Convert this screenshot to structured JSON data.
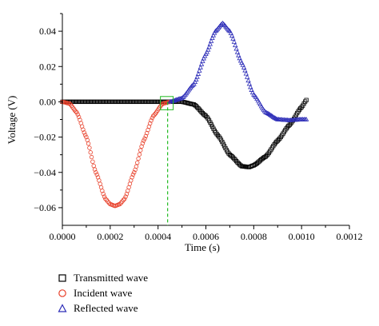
{
  "chart_data": {
    "type": "scatter",
    "xlabel": "Time (s)",
    "ylabel": "Voltage (V)",
    "xlim": [
      0.0,
      0.0012
    ],
    "ylim": [
      -0.07,
      0.05
    ],
    "x_ticks": [
      "0.0000",
      "0.0002",
      "0.0004",
      "0.0006",
      "0.0008",
      "0.0010",
      "0.0012"
    ],
    "y_ticks": [
      "−0.06",
      "−0.04",
      "−0.02",
      "0.00",
      "0.02",
      "0.04"
    ],
    "x_tick_values": [
      0.0,
      0.0002,
      0.0004,
      0.0006,
      0.0008,
      0.001,
      0.0012
    ],
    "y_tick_values": [
      -0.06,
      -0.04,
      -0.02,
      0.0,
      0.02,
      0.04
    ],
    "legend_position": "below",
    "series": [
      {
        "name": "Transmitted wave",
        "marker": "square",
        "color": "#000000",
        "x": [
          0.0,
          0.0001,
          0.0002,
          0.0003,
          0.0004,
          0.00045,
          0.0005,
          0.00055,
          0.0006,
          0.00065,
          0.0007,
          0.00075,
          0.00078,
          0.0008,
          0.00085,
          0.0009,
          0.00095,
          0.001,
          0.00102
        ],
        "y": [
          0.0,
          0.0,
          0.0,
          0.0,
          0.0,
          0.0,
          0.0,
          -0.0015,
          -0.008,
          -0.019,
          -0.03,
          -0.0365,
          -0.037,
          -0.036,
          -0.031,
          -0.022,
          -0.013,
          -0.003,
          0.001
        ]
      },
      {
        "name": "Incident wave",
        "marker": "circle",
        "color": "#e8402a",
        "x": [
          0.0,
          3e-05,
          6e-05,
          0.0001,
          0.00014,
          0.00018,
          0.0002,
          0.00022,
          0.00024,
          0.00026,
          0.0003,
          0.00034,
          0.00038,
          0.00042,
          0.00045
        ],
        "y": [
          0.0,
          -0.001,
          -0.006,
          -0.02,
          -0.04,
          -0.055,
          -0.058,
          -0.059,
          -0.058,
          -0.055,
          -0.04,
          -0.022,
          -0.008,
          -0.001,
          0.0
        ]
      },
      {
        "name": "Reflected wave",
        "marker": "triangle",
        "color": "#2d2db8",
        "x": [
          0.00045,
          0.0005,
          0.00055,
          0.0006,
          0.00064,
          0.00067,
          0.0007,
          0.00075,
          0.0008,
          0.00085,
          0.0009,
          0.00095,
          0.001,
          0.00102
        ],
        "y": [
          0.0,
          0.002,
          0.01,
          0.027,
          0.04,
          0.0445,
          0.04,
          0.022,
          0.004,
          -0.006,
          -0.01,
          -0.0105,
          -0.01,
          -0.01
        ]
      }
    ],
    "annotation": {
      "type": "dashed-vertical-line",
      "x": 0.00044,
      "color": "#22bb22"
    }
  }
}
